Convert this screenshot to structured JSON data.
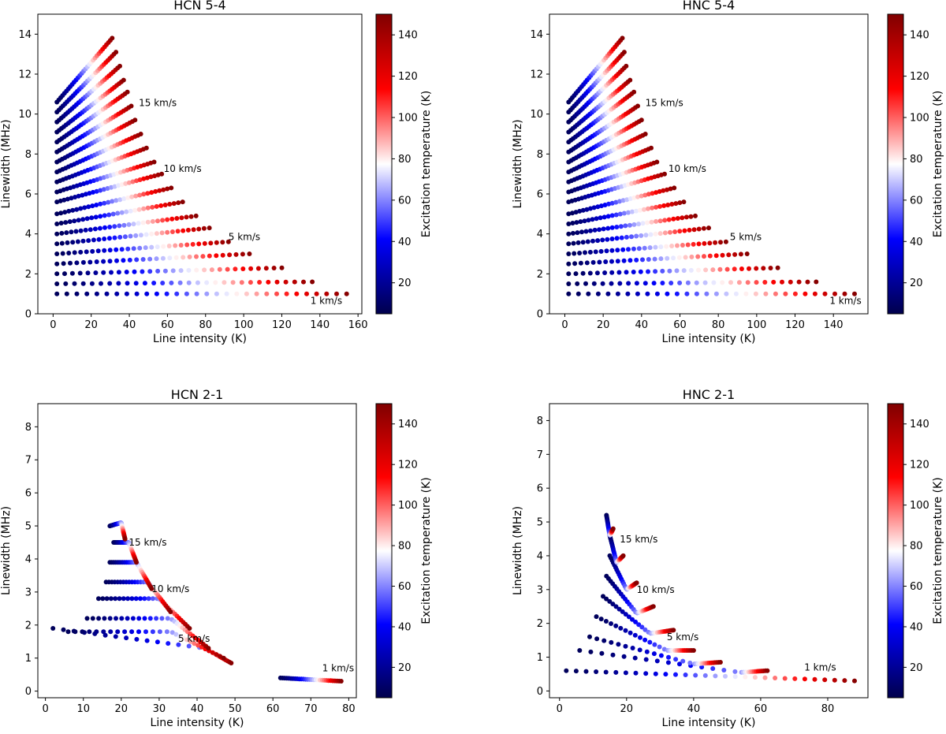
{
  "colorbar": {
    "label": "Excitation temperature (K)",
    "range": [
      5,
      150
    ],
    "ticks": [
      20,
      40,
      60,
      80,
      100,
      120,
      140
    ],
    "colormap": "seismic",
    "colors": [
      "#00004c",
      "#0000ff",
      "#ffffff",
      "#ff0000",
      "#800000"
    ]
  },
  "chart_data": [
    {
      "type": "scatter",
      "title": "HCN 5-4",
      "xlabel": "Line intensity (K)",
      "ylabel": "Linewidth (MHz)",
      "xlim": [
        -8,
        162
      ],
      "ylim": [
        0,
        15
      ],
      "xticks": [
        0,
        20,
        40,
        60,
        80,
        100,
        120,
        140,
        160
      ],
      "yticks": [
        0,
        2,
        4,
        6,
        8,
        10,
        12,
        14
      ],
      "annotations": [
        {
          "text": "15 km/s",
          "x": 45,
          "y": 10.4
        },
        {
          "text": "10 km/s",
          "x": 58,
          "y": 7.1
        },
        {
          "text": "5 km/s",
          "x": 92,
          "y": 3.7
        },
        {
          "text": "1 km/s",
          "x": 135,
          "y": 0.5
        }
      ],
      "curves": [
        {
          "velocity_kms": 1,
          "x": [
            2,
            154
          ],
          "y": [
            1.0,
            1.0
          ]
        },
        {
          "velocity_kms": 2,
          "x": [
            2,
            136
          ],
          "y": [
            1.5,
            1.6
          ]
        },
        {
          "velocity_kms": 3,
          "x": [
            2,
            120
          ],
          "y": [
            2.0,
            2.3
          ]
        },
        {
          "velocity_kms": 4,
          "x": [
            2,
            103
          ],
          "y": [
            2.5,
            3.0
          ]
        },
        {
          "velocity_kms": 5,
          "x": [
            2,
            92
          ],
          "y": [
            3.0,
            3.6
          ]
        },
        {
          "velocity_kms": 6,
          "x": [
            2,
            82
          ],
          "y": [
            3.5,
            4.3
          ]
        },
        {
          "velocity_kms": 7,
          "x": [
            2,
            75
          ],
          "y": [
            4.0,
            4.9
          ]
        },
        {
          "velocity_kms": 8,
          "x": [
            2,
            68
          ],
          "y": [
            4.5,
            5.6
          ]
        },
        {
          "velocity_kms": 9,
          "x": [
            2,
            62
          ],
          "y": [
            5.0,
            6.3
          ]
        },
        {
          "velocity_kms": 10,
          "x": [
            2,
            57
          ],
          "y": [
            5.6,
            7.0
          ]
        },
        {
          "velocity_kms": 11,
          "x": [
            2,
            53
          ],
          "y": [
            6.1,
            7.6
          ]
        },
        {
          "velocity_kms": 12,
          "x": [
            2,
            49
          ],
          "y": [
            6.6,
            8.3
          ]
        },
        {
          "velocity_kms": 13,
          "x": [
            2,
            46
          ],
          "y": [
            7.1,
            9.0
          ]
        },
        {
          "velocity_kms": 14,
          "x": [
            2,
            43
          ],
          "y": [
            7.6,
            9.7
          ]
        },
        {
          "velocity_kms": 15,
          "x": [
            2,
            41
          ],
          "y": [
            8.1,
            10.4
          ]
        },
        {
          "velocity_kms": 16,
          "x": [
            2,
            39
          ],
          "y": [
            8.6,
            11.1
          ]
        },
        {
          "velocity_kms": 17,
          "x": [
            2,
            37
          ],
          "y": [
            9.1,
            11.7
          ]
        },
        {
          "velocity_kms": 18,
          "x": [
            2,
            35
          ],
          "y": [
            9.6,
            12.4
          ]
        },
        {
          "velocity_kms": 19,
          "x": [
            2,
            33
          ],
          "y": [
            10.1,
            13.1
          ]
        },
        {
          "velocity_kms": 20,
          "x": [
            2,
            31
          ],
          "y": [
            10.6,
            13.8
          ]
        }
      ]
    },
    {
      "type": "scatter",
      "title": "HNC 5-4",
      "xlabel": "Line intensity (K)",
      "ylabel": "Linewidth (MHz)",
      "xlim": [
        -8,
        158
      ],
      "ylim": [
        0,
        15
      ],
      "xticks": [
        0,
        20,
        40,
        60,
        80,
        100,
        120,
        140
      ],
      "yticks": [
        0,
        2,
        4,
        6,
        8,
        10,
        12,
        14
      ],
      "annotations": [
        {
          "text": "15 km/s",
          "x": 42,
          "y": 10.4
        },
        {
          "text": "10 km/s",
          "x": 54,
          "y": 7.1
        },
        {
          "text": "5 km/s",
          "x": 86,
          "y": 3.7
        },
        {
          "text": "1 km/s",
          "x": 138,
          "y": 0.5
        }
      ],
      "curves": [
        {
          "velocity_kms": 1,
          "x": [
            2,
            151
          ],
          "y": [
            1.0,
            1.0
          ]
        },
        {
          "velocity_kms": 2,
          "x": [
            2,
            131
          ],
          "y": [
            1.5,
            1.6
          ]
        },
        {
          "velocity_kms": 3,
          "x": [
            2,
            111
          ],
          "y": [
            2.0,
            2.3
          ]
        },
        {
          "velocity_kms": 4,
          "x": [
            2,
            95
          ],
          "y": [
            2.5,
            3.0
          ]
        },
        {
          "velocity_kms": 5,
          "x": [
            2,
            84
          ],
          "y": [
            3.0,
            3.6
          ]
        },
        {
          "velocity_kms": 6,
          "x": [
            2,
            75
          ],
          "y": [
            3.5,
            4.3
          ]
        },
        {
          "velocity_kms": 7,
          "x": [
            2,
            68
          ],
          "y": [
            4.0,
            4.9
          ]
        },
        {
          "velocity_kms": 8,
          "x": [
            2,
            62
          ],
          "y": [
            4.5,
            5.6
          ]
        },
        {
          "velocity_kms": 9,
          "x": [
            2,
            57
          ],
          "y": [
            5.0,
            6.3
          ]
        },
        {
          "velocity_kms": 10,
          "x": [
            2,
            52
          ],
          "y": [
            5.6,
            7.0
          ]
        },
        {
          "velocity_kms": 11,
          "x": [
            2,
            48
          ],
          "y": [
            6.1,
            7.6
          ]
        },
        {
          "velocity_kms": 12,
          "x": [
            2,
            45
          ],
          "y": [
            6.6,
            8.3
          ]
        },
        {
          "velocity_kms": 13,
          "x": [
            2,
            42
          ],
          "y": [
            7.1,
            9.0
          ]
        },
        {
          "velocity_kms": 14,
          "x": [
            2,
            40
          ],
          "y": [
            7.6,
            9.7
          ]
        },
        {
          "velocity_kms": 15,
          "x": [
            2,
            38
          ],
          "y": [
            8.1,
            10.4
          ]
        },
        {
          "velocity_kms": 16,
          "x": [
            2,
            36
          ],
          "y": [
            8.6,
            11.1
          ]
        },
        {
          "velocity_kms": 17,
          "x": [
            2,
            34
          ],
          "y": [
            9.1,
            11.7
          ]
        },
        {
          "velocity_kms": 18,
          "x": [
            2,
            32
          ],
          "y": [
            9.6,
            12.4
          ]
        },
        {
          "velocity_kms": 19,
          "x": [
            2,
            31
          ],
          "y": [
            10.1,
            13.1
          ]
        },
        {
          "velocity_kms": 20,
          "x": [
            2,
            30
          ],
          "y": [
            10.6,
            13.8
          ]
        }
      ]
    },
    {
      "type": "scatter",
      "title": "HCN 2-1",
      "xlabel": "Line intensity (K)",
      "ylabel": "Linewidth (MHz)",
      "xlim": [
        -2,
        82
      ],
      "ylim": [
        -0.2,
        8.7
      ],
      "xticks": [
        0,
        10,
        20,
        30,
        40,
        50,
        60,
        70,
        80
      ],
      "yticks": [
        0,
        1,
        2,
        3,
        4,
        5,
        6,
        7,
        8
      ],
      "annotations": [
        {
          "text": "15 km/s",
          "x": 22,
          "y": 4.4
        },
        {
          "text": "10 km/s",
          "x": 28,
          "y": 3.0
        },
        {
          "text": "5 km/s",
          "x": 35,
          "y": 1.5
        },
        {
          "text": "1 km/s",
          "x": 73,
          "y": 0.6
        }
      ],
      "curves": [
        {
          "velocity_kms": 1,
          "x": [
            62,
            78
          ],
          "y": [
            0.4,
            0.3
          ]
        },
        {
          "velocity_kms": 3,
          "x": [
            2,
            42,
            49
          ],
          "y": [
            1.9,
            1.3,
            0.85
          ]
        },
        {
          "velocity_kms": 5,
          "x": [
            6,
            33,
            47
          ],
          "y": [
            1.8,
            1.8,
            1.0
          ]
        },
        {
          "velocity_kms": 7,
          "x": [
            11,
            33,
            43
          ],
          "y": [
            2.2,
            2.2,
            1.3
          ]
        },
        {
          "velocity_kms": 9,
          "x": [
            14,
            30,
            38
          ],
          "y": [
            2.8,
            2.8,
            1.9
          ]
        },
        {
          "velocity_kms": 11,
          "x": [
            16,
            27,
            33
          ],
          "y": [
            3.3,
            3.3,
            2.4
          ]
        },
        {
          "velocity_kms": 13,
          "x": [
            17,
            24,
            28
          ],
          "y": [
            3.9,
            3.9,
            3.1
          ]
        },
        {
          "velocity_kms": 15,
          "x": [
            18,
            22,
            24
          ],
          "y": [
            4.5,
            4.5,
            3.9
          ]
        },
        {
          "velocity_kms": 17,
          "x": [
            17,
            20,
            21
          ],
          "y": [
            5.0,
            5.1,
            4.6
          ]
        }
      ]
    },
    {
      "type": "scatter",
      "title": "HNC 2-1",
      "xlabel": "Line intensity (K)",
      "ylabel": "Linewidth (MHz)",
      "xlim": [
        -3,
        92
      ],
      "ylim": [
        -0.2,
        8.5
      ],
      "xticks": [
        0,
        20,
        40,
        60,
        80
      ],
      "yticks": [
        0,
        1,
        2,
        3,
        4,
        5,
        6,
        7,
        8
      ],
      "annotations": [
        {
          "text": "15 km/s",
          "x": 18,
          "y": 4.4
        },
        {
          "text": "10 km/s",
          "x": 23,
          "y": 2.9
        },
        {
          "text": "5 km/s",
          "x": 32,
          "y": 1.5
        },
        {
          "text": "1 km/s",
          "x": 73,
          "y": 0.6
        }
      ],
      "curves": [
        {
          "velocity_kms": 1,
          "x": [
            2,
            88
          ],
          "y": [
            0.6,
            0.3
          ]
        },
        {
          "velocity_kms": 3,
          "x": [
            6,
            54,
            62
          ],
          "y": [
            1.2,
            0.55,
            0.6
          ]
        },
        {
          "velocity_kms": 5,
          "x": [
            9,
            40,
            48
          ],
          "y": [
            1.6,
            0.8,
            0.85
          ]
        },
        {
          "velocity_kms": 7,
          "x": [
            11,
            32,
            40
          ],
          "y": [
            2.2,
            1.2,
            1.2
          ]
        },
        {
          "velocity_kms": 9,
          "x": [
            13,
            27,
            34
          ],
          "y": [
            2.8,
            1.7,
            1.8
          ]
        },
        {
          "velocity_kms": 11,
          "x": [
            14,
            23,
            28
          ],
          "y": [
            3.4,
            2.3,
            2.5
          ]
        },
        {
          "velocity_kms": 13,
          "x": [
            15,
            20,
            23
          ],
          "y": [
            4.0,
            3.0,
            3.2
          ]
        },
        {
          "velocity_kms": 15,
          "x": [
            15,
            17,
            19
          ],
          "y": [
            4.6,
            3.8,
            4.0
          ]
        },
        {
          "velocity_kms": 17,
          "x": [
            14,
            15,
            16
          ],
          "y": [
            5.2,
            4.6,
            4.8
          ]
        }
      ]
    }
  ]
}
